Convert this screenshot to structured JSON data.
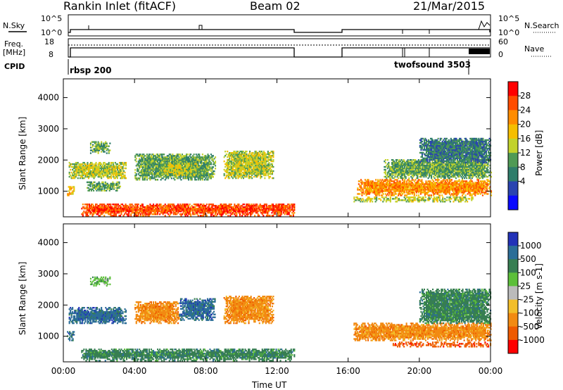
{
  "header": {
    "station": "Rankin Inlet (fitACF)",
    "beam": "Beam 02",
    "date": "21/Mar/2015"
  },
  "status_panels": {
    "nsky": {
      "label": "N.Sky",
      "ticks": [
        "10^5",
        "10^0"
      ]
    },
    "nsearch": {
      "label": "N.Search",
      "ticks": [
        "10^5",
        "10^0"
      ]
    },
    "freq": {
      "label_line1": "Freq.",
      "label_line2": "[MHz]",
      "ticks": [
        "18",
        "8"
      ]
    },
    "nave": {
      "label": "Nave",
      "ticks": [
        "60",
        "0"
      ]
    },
    "cpid": {
      "label": "CPID",
      "modes": [
        "rbsp 200",
        "twofsound 3503"
      ]
    }
  },
  "colorbars": {
    "power": {
      "label": "Power [dB]",
      "ticks": [
        "28",
        "24",
        "20",
        "16",
        "12",
        "8",
        "4"
      ],
      "colors": [
        "#ff0000",
        "#ff4c00",
        "#ff8c00",
        "#f5be00",
        "#c2d22c",
        "#4f9a55",
        "#2f7d6b",
        "#2a44b0",
        "#0a0aff"
      ]
    },
    "velocity": {
      "label": "Velocity [m s-1]",
      "ticks": [
        "1000",
        "500",
        "100",
        "25",
        "-25",
        "-100",
        "-500",
        "-1000"
      ],
      "colors": [
        "#2232b8",
        "#2c6e98",
        "#377e52",
        "#5cbf3a",
        "#bbbbbb",
        "#f2be2a",
        "#f28a12",
        "#ee5a00",
        "#ff0000"
      ]
    }
  },
  "chart_data": [
    {
      "type": "heatmap",
      "name": "power-panel",
      "ylabel": "Slant Range [km]",
      "x_ticks": [
        "00:00",
        "04:00",
        "08:00",
        "12:00",
        "16:00",
        "20:00",
        "00:00"
      ],
      "y_ticks": [
        "1000",
        "2000",
        "3000",
        "4000"
      ],
      "xlim": [
        0,
        24
      ],
      "ylim": [
        180,
        4600
      ],
      "regions": [
        {
          "t": [
            1.0,
            13.0
          ],
          "r": [
            200,
            600
          ],
          "value": 28
        },
        {
          "t": [
            0.3,
            3.5
          ],
          "r": [
            1400,
            1900
          ],
          "value": 16
        },
        {
          "t": [
            0.2,
            0.6
          ],
          "r": [
            850,
            1150
          ],
          "value": 20
        },
        {
          "t": [
            1.3,
            3.2
          ],
          "r": [
            1000,
            1300
          ],
          "value": 12
        },
        {
          "t": [
            1.5,
            2.6
          ],
          "r": [
            2200,
            2600
          ],
          "value": 12
        },
        {
          "t": [
            4.0,
            8.5
          ],
          "r": [
            1350,
            2200
          ],
          "value": 12
        },
        {
          "t": [
            5.5,
            7.5
          ],
          "r": [
            1500,
            1900
          ],
          "value": 16
        },
        {
          "t": [
            9.0,
            11.8
          ],
          "r": [
            1400,
            2300
          ],
          "value": 16
        },
        {
          "t": [
            16.3,
            23.0
          ],
          "r": [
            650,
            800
          ],
          "value": 16
        },
        {
          "t": [
            16.5,
            24.0
          ],
          "r": [
            850,
            1350
          ],
          "value": 24
        },
        {
          "t": [
            18.0,
            24.0
          ],
          "r": [
            1400,
            2000
          ],
          "value": 12
        },
        {
          "t": [
            20.0,
            24.0
          ],
          "r": [
            1900,
            2700
          ],
          "value": 8
        }
      ]
    },
    {
      "type": "heatmap",
      "name": "velocity-panel",
      "ylabel": "Slant Range [km]",
      "xlabel": "Time UT",
      "x_ticks": [
        "00:00",
        "04:00",
        "08:00",
        "12:00",
        "16:00",
        "20:00",
        "00:00"
      ],
      "y_ticks": [
        "1000",
        "2000",
        "3000",
        "4000"
      ],
      "xlim": [
        0,
        24
      ],
      "ylim": [
        180,
        4600
      ],
      "regions": [
        {
          "t": [
            1.0,
            13.0
          ],
          "r": [
            200,
            600
          ],
          "value": 100
        },
        {
          "t": [
            0.3,
            3.5
          ],
          "r": [
            1400,
            1900
          ],
          "value": 500
        },
        {
          "t": [
            0.2,
            0.6
          ],
          "r": [
            850,
            1150
          ],
          "value": 500
        },
        {
          "t": [
            1.5,
            2.6
          ],
          "r": [
            2600,
            2900
          ],
          "value": 25
        },
        {
          "t": [
            4.0,
            6.5
          ],
          "r": [
            1400,
            2100
          ],
          "value": -500
        },
        {
          "t": [
            6.5,
            8.5
          ],
          "r": [
            1500,
            2200
          ],
          "value": 500
        },
        {
          "t": [
            9.0,
            11.8
          ],
          "r": [
            1400,
            2300
          ],
          "value": -500
        },
        {
          "t": [
            16.3,
            24.0
          ],
          "r": [
            850,
            1400
          ],
          "value": -500
        },
        {
          "t": [
            18.5,
            24.0
          ],
          "r": [
            650,
            800
          ],
          "value": -1000
        },
        {
          "t": [
            20.0,
            24.0
          ],
          "r": [
            1400,
            2500
          ],
          "value": 100
        }
      ]
    }
  ]
}
